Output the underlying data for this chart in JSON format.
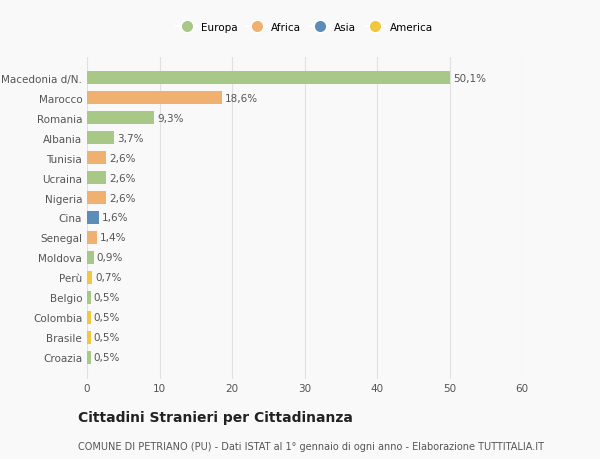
{
  "categories": [
    "Macedonia d/N.",
    "Marocco",
    "Romania",
    "Albania",
    "Tunisia",
    "Ucraina",
    "Nigeria",
    "Cina",
    "Senegal",
    "Moldova",
    "Perù",
    "Belgio",
    "Colombia",
    "Brasile",
    "Croazia"
  ],
  "values": [
    50.1,
    18.6,
    9.3,
    3.7,
    2.6,
    2.6,
    2.6,
    1.6,
    1.4,
    0.9,
    0.7,
    0.5,
    0.5,
    0.5,
    0.5
  ],
  "labels": [
    "50,1%",
    "18,6%",
    "9,3%",
    "3,7%",
    "2,6%",
    "2,6%",
    "2,6%",
    "1,6%",
    "1,4%",
    "0,9%",
    "0,7%",
    "0,5%",
    "0,5%",
    "0,5%",
    "0,5%"
  ],
  "colors": [
    "#a8c888",
    "#f0b070",
    "#a8c888",
    "#a8c888",
    "#f0b070",
    "#a8c888",
    "#f0b070",
    "#5b8db8",
    "#f0b070",
    "#a8c888",
    "#f0c840",
    "#a8c888",
    "#f0c840",
    "#f0c840",
    "#a8c888"
  ],
  "legend_labels": [
    "Europa",
    "Africa",
    "Asia",
    "America"
  ],
  "legend_colors": [
    "#a8c888",
    "#f0b070",
    "#5b8db8",
    "#f0c840"
  ],
  "title": "Cittadini Stranieri per Cittadinanza",
  "subtitle": "COMUNE DI PETRIANO (PU) - Dati ISTAT al 1° gennaio di ogni anno - Elaborazione TUTTITALIA.IT",
  "xlim": [
    0,
    60
  ],
  "xticks": [
    0,
    10,
    20,
    30,
    40,
    50,
    60
  ],
  "background_color": "#f9f9f9",
  "grid_color": "#e0e0e0",
  "bar_height": 0.65,
  "label_fontsize": 7.5,
  "tick_fontsize": 7.5,
  "title_fontsize": 10,
  "subtitle_fontsize": 7
}
